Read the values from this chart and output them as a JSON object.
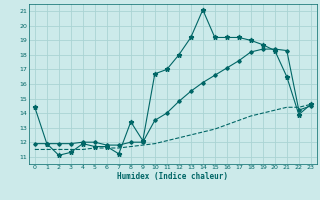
{
  "xlabel": "Humidex (Indice chaleur)",
  "ylabel": "",
  "bg_color": "#cceaea",
  "grid_color": "#aad4d4",
  "line_color": "#006666",
  "xlim": [
    -0.5,
    23.5
  ],
  "ylim": [
    10.5,
    21.5
  ],
  "xticks": [
    0,
    1,
    2,
    3,
    4,
    5,
    6,
    7,
    8,
    9,
    10,
    11,
    12,
    13,
    14,
    15,
    16,
    17,
    18,
    19,
    20,
    21,
    22,
    23
  ],
  "yticks": [
    11,
    12,
    13,
    14,
    15,
    16,
    17,
    18,
    19,
    20,
    21
  ],
  "line1_x": [
    0,
    1,
    2,
    3,
    4,
    5,
    6,
    7,
    8,
    9,
    10,
    11,
    12,
    13,
    14,
    15,
    16,
    17,
    18,
    19,
    20,
    21,
    22,
    23
  ],
  "line1_y": [
    14.4,
    11.9,
    11.1,
    11.3,
    11.9,
    11.7,
    11.7,
    11.2,
    13.4,
    12.1,
    16.7,
    17.0,
    18.0,
    19.2,
    21.1,
    19.2,
    19.2,
    19.2,
    19.0,
    18.7,
    18.3,
    16.5,
    13.9,
    14.6
  ],
  "line2_x": [
    0,
    1,
    2,
    3,
    4,
    5,
    6,
    7,
    8,
    9,
    10,
    11,
    12,
    13,
    14,
    15,
    16,
    17,
    18,
    19,
    20,
    21,
    22,
    23
  ],
  "line2_y": [
    11.9,
    11.9,
    11.9,
    11.9,
    12.0,
    12.0,
    11.8,
    11.8,
    12.0,
    12.0,
    13.5,
    14.0,
    14.8,
    15.5,
    16.1,
    16.6,
    17.1,
    17.6,
    18.2,
    18.4,
    18.4,
    18.3,
    14.2,
    14.5
  ],
  "line3_x": [
    0,
    1,
    2,
    3,
    4,
    5,
    6,
    7,
    8,
    9,
    10,
    11,
    12,
    13,
    14,
    15,
    16,
    17,
    18,
    19,
    20,
    21,
    22,
    23
  ],
  "line3_y": [
    11.5,
    11.5,
    11.5,
    11.5,
    11.5,
    11.6,
    11.6,
    11.6,
    11.7,
    11.8,
    11.9,
    12.1,
    12.3,
    12.5,
    12.7,
    12.9,
    13.2,
    13.5,
    13.8,
    14.0,
    14.2,
    14.4,
    14.4,
    14.6
  ]
}
